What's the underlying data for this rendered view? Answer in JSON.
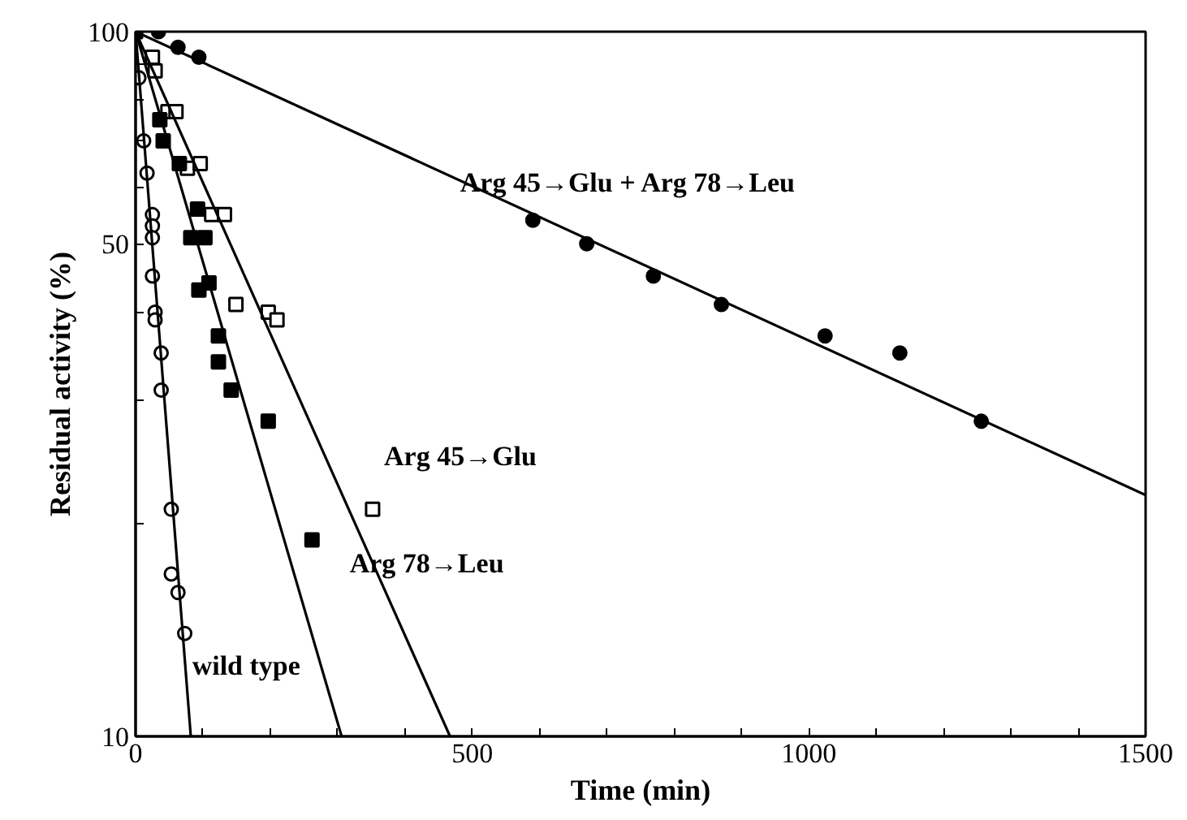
{
  "chart_data": {
    "type": "scatter",
    "xlabel": "Time (min)",
    "ylabel": "Residual activity (%)",
    "xlim": [
      0,
      1500
    ],
    "ylim": [
      10,
      100
    ],
    "log": "y",
    "grid": false,
    "xticks": [
      0,
      {
        "value": 100,
        "label": null
      },
      {
        "value": 200,
        "label": null
      },
      {
        "value": 300,
        "label": null
      },
      {
        "value": 400,
        "label": null
      },
      500,
      {
        "value": 600,
        "label": null
      },
      {
        "value": 700,
        "label": null
      },
      {
        "value": 800,
        "label": null
      },
      {
        "value": 900,
        "label": null
      },
      1000,
      {
        "value": 1100,
        "label": null
      },
      {
        "value": 1200,
        "label": null
      },
      {
        "value": 1300,
        "label": null
      },
      {
        "value": 1400,
        "label": null
      },
      1500
    ],
    "yticks": [
      10,
      {
        "value": 20,
        "label": null
      },
      {
        "value": 30,
        "label": null
      },
      {
        "value": 40,
        "label": null
      },
      50,
      {
        "value": 60,
        "label": null
      },
      {
        "value": 70,
        "label": null
      },
      {
        "value": 80,
        "label": null
      },
      {
        "value": 90,
        "label": null
      },
      100
    ],
    "series": [
      {
        "marker": "circle",
        "color": "#000000",
        "x": [
          34,
          63,
          94,
          590,
          670,
          769,
          870,
          1024,
          1135,
          1256
        ],
        "values": [
          100,
          95,
          92,
          54,
          50,
          45,
          41,
          37,
          35,
          28
        ]
      },
      {
        "marker": "square",
        "color": "#ffffff",
        "x": [
          25,
          29,
          48,
          60,
          77,
          96,
          113,
          132,
          149,
          197,
          210,
          352
        ],
        "values": [
          92,
          88,
          77,
          77,
          64,
          65,
          55,
          55,
          41,
          40,
          39,
          21
        ]
      },
      {
        "marker": "square",
        "color": "#000000",
        "x": [
          0,
          36,
          41,
          65,
          82,
          92,
          103,
          94,
          109,
          123,
          123,
          142,
          197,
          262
        ],
        "values": [
          100,
          75,
          70,
          65,
          51,
          56,
          51,
          43,
          44,
          37,
          34,
          31,
          28,
          19
        ]
      },
      {
        "marker": "circle",
        "color": "#ffffff",
        "x": [
          5,
          12,
          17,
          25,
          25,
          25,
          25,
          29,
          29,
          38,
          38,
          53,
          53,
          63,
          73
        ],
        "values": [
          86,
          70,
          63,
          55,
          53,
          51,
          45,
          40,
          39,
          35,
          31,
          21,
          17,
          16,
          14
        ]
      },
      {
        "type": "line",
        "marker": "none",
        "line_style": "solid",
        "color": "#000000",
        "x": [
          0,
          1500
        ],
        "values": [
          100,
          22
        ]
      },
      {
        "type": "line",
        "marker": "none",
        "line_style": "solid",
        "color": "#000000",
        "x": [
          0,
          467
        ],
        "values": [
          100,
          10
        ]
      },
      {
        "type": "line",
        "marker": "none",
        "line_style": "solid",
        "color": "#000000",
        "x": [
          0,
          306
        ],
        "values": [
          100,
          10
        ]
      },
      {
        "type": "line",
        "marker": "none",
        "line_style": "solid",
        "color": "#000000",
        "x": [
          0,
          82
        ],
        "values": [
          100,
          10
        ]
      }
    ],
    "annotations": [
      {
        "text": "Arg 45→Glu + Arg 78→Leu",
        "x": 482,
        "y": 61
      },
      "Arg 45→Glu",
      "Arg 78→Leu",
      {
        "text": "wild type",
        "x": 84,
        "y": 12.6
      }
    ]
  }
}
